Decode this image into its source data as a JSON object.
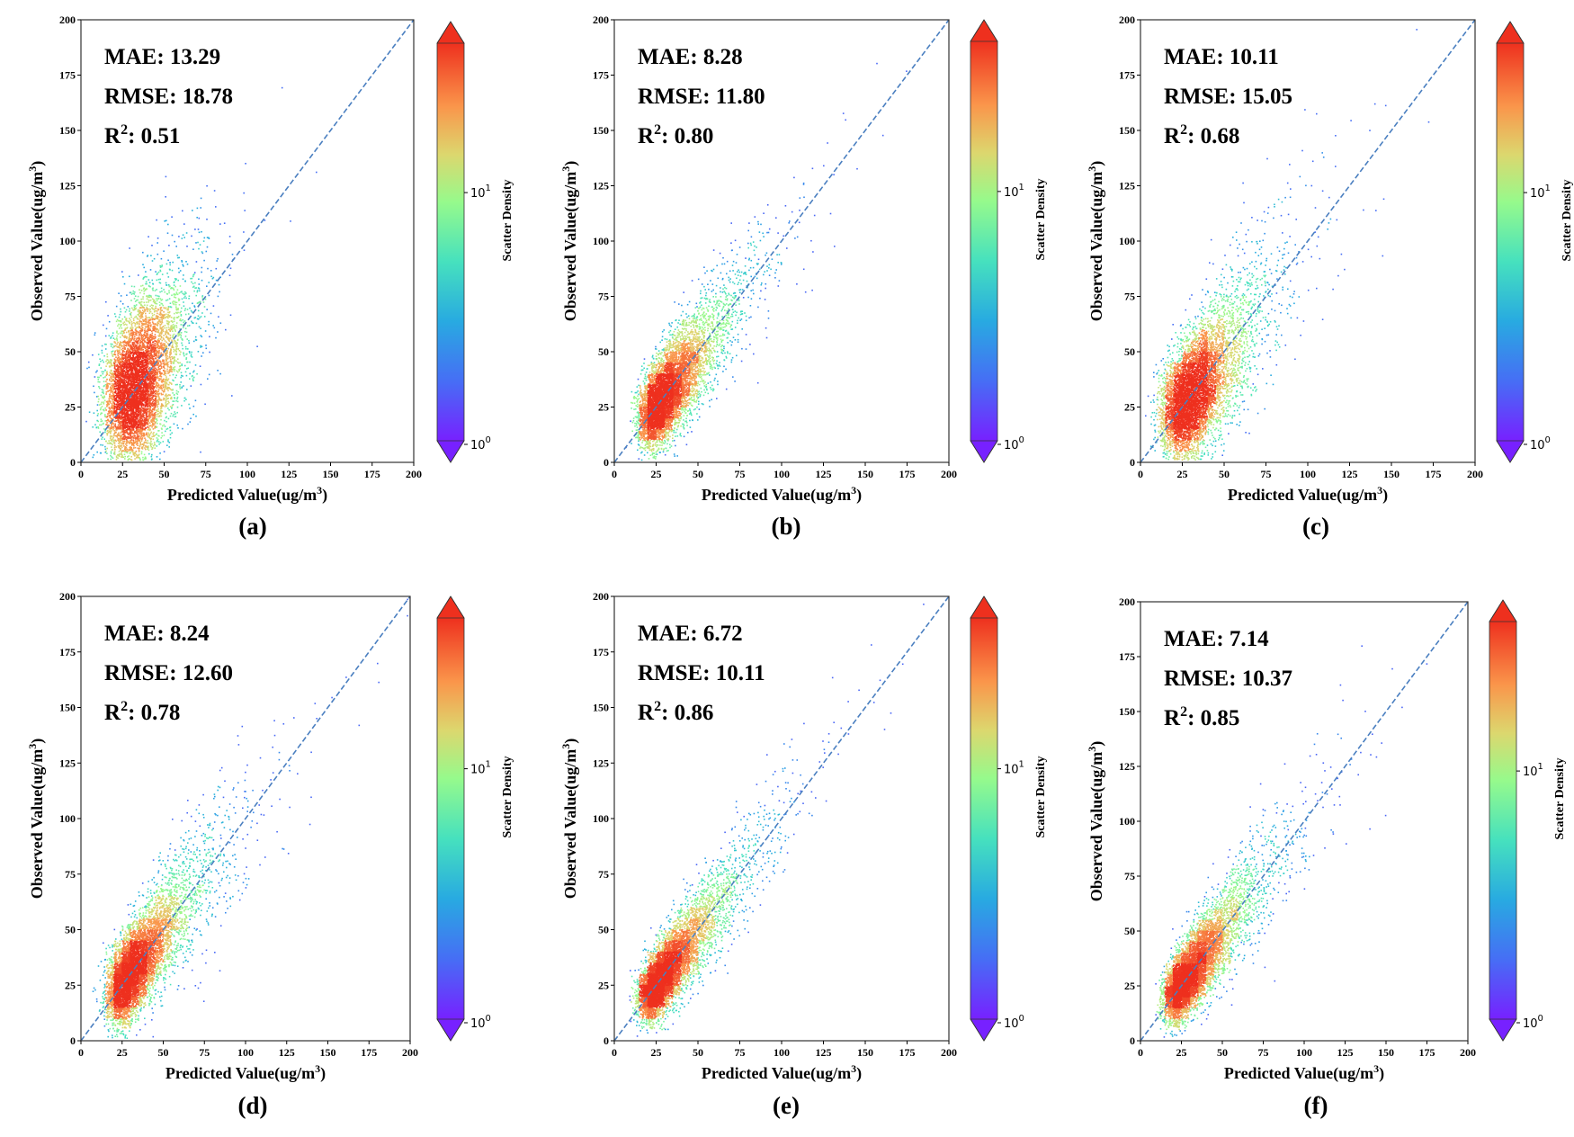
{
  "chart_data": [
    {
      "type": "scatter",
      "panel_label": "(a)",
      "xlabel": "Predicted Value(ug/m³)",
      "ylabel": "Observed Value(ug/m³)",
      "xlim": [
        0,
        200
      ],
      "ylim": [
        0,
        200
      ],
      "xticks": [
        0,
        25,
        50,
        75,
        100,
        125,
        150,
        175,
        200
      ],
      "yticks": [
        0,
        25,
        50,
        75,
        100,
        125,
        150,
        175,
        200
      ],
      "reference_line": "y = x (dashed)",
      "metrics": {
        "mae_label": "MAE: 13.29",
        "rmse_label": "RMSE: 18.78",
        "r2_prefix": "R",
        "r2_sup": "2",
        "r2_value": ": 0.51"
      },
      "colorbar": {
        "label": "Scatter Density",
        "scale": "log",
        "ticks": [
          {
            "base": "10",
            "exp": "0",
            "value": 1
          },
          {
            "base": "10",
            "exp": "1",
            "value": 10
          }
        ],
        "colormap": "rainbow",
        "extend": "both"
      },
      "distribution": {
        "center_x": 32,
        "center_y": 30,
        "spread_along": 18,
        "spread_across": 14,
        "slope": 1.05,
        "skew": 0.5
      }
    },
    {
      "type": "scatter",
      "panel_label": "(b)",
      "xlabel": "Predicted Value(ug/m³)",
      "ylabel": "Observed Value(ug/m³)",
      "xlim": [
        0,
        200
      ],
      "ylim": [
        0,
        200
      ],
      "xticks": [
        0,
        25,
        50,
        75,
        100,
        125,
        150,
        175,
        200
      ],
      "yticks": [
        0,
        25,
        50,
        75,
        100,
        125,
        150,
        175,
        200
      ],
      "reference_line": "y = x (dashed)",
      "metrics": {
        "mae_label": "MAE: 8.28",
        "rmse_label": "RMSE: 11.80",
        "r2_prefix": "R",
        "r2_sup": "2",
        "r2_value": ": 0.80"
      },
      "colorbar": {
        "label": "Scatter Density",
        "scale": "log",
        "ticks": [
          {
            "base": "10",
            "exp": "0",
            "value": 1
          },
          {
            "base": "10",
            "exp": "1",
            "value": 10
          }
        ],
        "colormap": "rainbow",
        "extend": "both"
      },
      "distribution": {
        "center_x": 30,
        "center_y": 30,
        "spread_along": 20,
        "spread_across": 8,
        "slope": 1.0,
        "skew": 0.6
      }
    },
    {
      "type": "scatter",
      "panel_label": "(c)",
      "xlabel": "Predicted Value(ug/m³)",
      "ylabel": "Observed Value(ug/m³)",
      "xlim": [
        0,
        200
      ],
      "ylim": [
        0,
        200
      ],
      "xticks": [
        0,
        25,
        50,
        75,
        100,
        125,
        150,
        175,
        200
      ],
      "yticks": [
        0,
        25,
        50,
        75,
        100,
        125,
        150,
        175,
        200
      ],
      "reference_line": "y = x (dashed)",
      "metrics": {
        "mae_label": "MAE: 10.11",
        "rmse_label": "RMSE: 15.05",
        "r2_prefix": "R",
        "r2_sup": "2",
        "r2_value": ": 0.68"
      },
      "colorbar": {
        "label": "Scatter Density",
        "scale": "log",
        "ticks": [
          {
            "base": "10",
            "exp": "0",
            "value": 1
          },
          {
            "base": "10",
            "exp": "1",
            "value": 10
          }
        ],
        "colormap": "rainbow",
        "extend": "both"
      },
      "distribution": {
        "center_x": 30,
        "center_y": 30,
        "spread_along": 20,
        "spread_across": 11,
        "slope": 1.0,
        "skew": 0.6
      }
    },
    {
      "type": "scatter",
      "panel_label": "(d)",
      "xlabel": "Predicted Value(ug/m³)",
      "ylabel": "Observed Value(ug/m³)",
      "xlim": [
        0,
        200
      ],
      "ylim": [
        0,
        200
      ],
      "xticks": [
        0,
        25,
        50,
        75,
        100,
        125,
        150,
        175,
        200
      ],
      "yticks": [
        0,
        25,
        50,
        75,
        100,
        125,
        150,
        175,
        200
      ],
      "reference_line": "y = x (dashed)",
      "metrics": {
        "mae_label": "MAE: 8.24",
        "rmse_label": "RMSE: 12.60",
        "r2_prefix": "R",
        "r2_sup": "2",
        "r2_value": ": 0.78"
      },
      "colorbar": {
        "label": "Scatter Density",
        "scale": "log",
        "ticks": [
          {
            "base": "10",
            "exp": "0",
            "value": 1
          },
          {
            "base": "10",
            "exp": "1",
            "value": 10
          }
        ],
        "colormap": "rainbow",
        "extend": "both"
      },
      "distribution": {
        "center_x": 32,
        "center_y": 32,
        "spread_along": 22,
        "spread_across": 8,
        "slope": 1.0,
        "skew": 0.6
      }
    },
    {
      "type": "scatter",
      "panel_label": "(e)",
      "xlabel": "Predicted Value(ug/m³)",
      "ylabel": "Observed Value(ug/m³)",
      "xlim": [
        0,
        200
      ],
      "ylim": [
        0,
        200
      ],
      "xticks": [
        0,
        25,
        50,
        75,
        100,
        125,
        150,
        175,
        200
      ],
      "yticks": [
        0,
        25,
        50,
        75,
        100,
        125,
        150,
        175,
        200
      ],
      "reference_line": "y = x (dashed)",
      "metrics": {
        "mae_label": "MAE: 6.72",
        "rmse_label": "RMSE: 10.11",
        "r2_prefix": "R",
        "r2_sup": "2",
        "r2_value": ": 0.86"
      },
      "colorbar": {
        "label": "Scatter Density",
        "scale": "log",
        "ticks": [
          {
            "base": "10",
            "exp": "0",
            "value": 1
          },
          {
            "base": "10",
            "exp": "1",
            "value": 10
          }
        ],
        "colormap": "rainbow",
        "extend": "both"
      },
      "distribution": {
        "center_x": 30,
        "center_y": 30,
        "spread_along": 22,
        "spread_across": 6.5,
        "slope": 1.0,
        "skew": 0.6
      }
    },
    {
      "type": "scatter",
      "panel_label": "(f)",
      "xlabel": "Predicted Value(ug/m³)",
      "ylabel": "Observed Value(ug/m³)",
      "xlim": [
        0,
        200
      ],
      "ylim": [
        0,
        200
      ],
      "xticks": [
        0,
        25,
        50,
        75,
        100,
        125,
        150,
        175,
        200
      ],
      "yticks": [
        0,
        25,
        50,
        75,
        100,
        125,
        150,
        175,
        200
      ],
      "reference_line": "y = x (dashed)",
      "metrics": {
        "mae_label": "MAE: 7.14",
        "rmse_label": "RMSE: 10.37",
        "r2_prefix": "R",
        "r2_sup": "2",
        "r2_value": ": 0.85"
      },
      "colorbar": {
        "label": "Scatter Density",
        "scale": "log",
        "ticks": [
          {
            "base": "10",
            "exp": "0",
            "value": 1
          },
          {
            "base": "10",
            "exp": "1",
            "value": 10
          }
        ],
        "colormap": "rainbow",
        "extend": "both"
      },
      "distribution": {
        "center_x": 30,
        "center_y": 30,
        "spread_along": 22,
        "spread_across": 7,
        "slope": 1.0,
        "skew": 0.6
      }
    }
  ]
}
